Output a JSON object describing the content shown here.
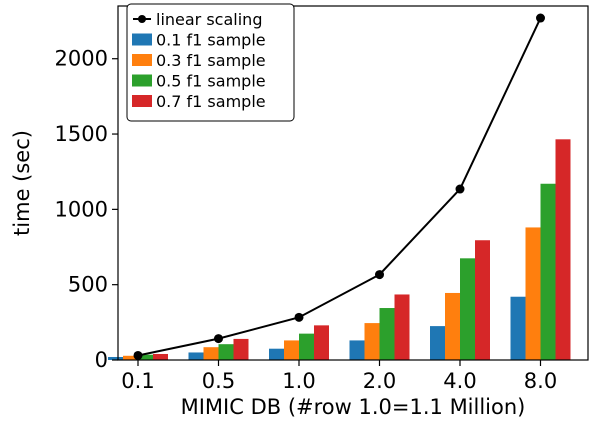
{
  "chart_data": {
    "type": "bar",
    "xlabel": "MIMIC DB (#row 1.0=1.1 Million)",
    "ylabel": "time (sec)",
    "categories": [
      "0.1",
      "0.5",
      "1.0",
      "2.0",
      "4.0",
      "8.0"
    ],
    "ylim": [
      0,
      2350
    ],
    "yticks": [
      0,
      500,
      1000,
      1500,
      2000
    ],
    "grid": false,
    "legend_position": "top-left",
    "series": [
      {
        "name": "0.1 f1 sample",
        "color": "#1f77b4",
        "values": [
          20,
          50,
          75,
          130,
          225,
          420
        ]
      },
      {
        "name": "0.3 f1 sample",
        "color": "#ff7f0e",
        "values": [
          28,
          85,
          130,
          245,
          445,
          880
        ]
      },
      {
        "name": "0.5 f1 sample",
        "color": "#2ca02c",
        "values": [
          35,
          105,
          175,
          345,
          675,
          1170
        ]
      },
      {
        "name": "0.7 f1 sample",
        "color": "#d62728",
        "values": [
          40,
          140,
          230,
          435,
          795,
          1465
        ]
      }
    ],
    "line_series": {
      "name": "linear scaling",
      "color": "#000000",
      "values": [
        30,
        142,
        283,
        567,
        1135,
        2270
      ]
    }
  }
}
